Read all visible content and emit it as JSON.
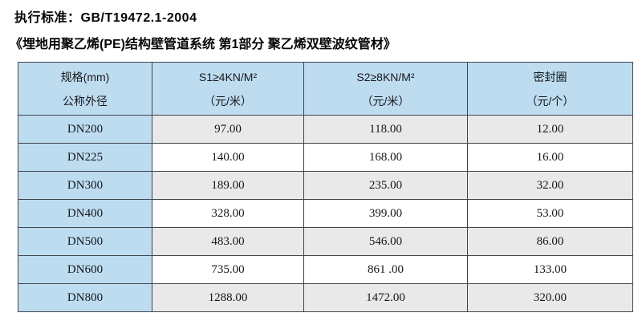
{
  "document": {
    "standard_line": "执行标准：GB/T19472.1-2004",
    "title_line": "《埋地用聚乙烯(PE)结构壁管道系统 第1部分 聚乙烯双壁波纹管材》"
  },
  "colors": {
    "header_bg": "#bedcf0",
    "first_column_bg": "#bedcf0",
    "alt_row_bg": "#e9e9e9",
    "border": "#3f464d"
  },
  "table": {
    "columns": [
      {
        "line1": "规格(mm)",
        "line2": "公称外径"
      },
      {
        "line1": "S1≥4KN/M²",
        "line2": "（元/米）"
      },
      {
        "line1": "S2≥8KN/M²",
        "line2": "（元/米）"
      },
      {
        "line1": "密封圈",
        "line2": "（元/个）"
      }
    ],
    "rows": [
      {
        "spec": "DN200",
        "s1_price": "97.00",
        "s2_price": "118.00",
        "seal_price": "12.00"
      },
      {
        "spec": "DN225",
        "s1_price": "140.00",
        "s2_price": "168.00",
        "seal_price": "16.00"
      },
      {
        "spec": "DN300",
        "s1_price": "189.00",
        "s2_price": "235.00",
        "seal_price": "32.00"
      },
      {
        "spec": "DN400",
        "s1_price": "328.00",
        "s2_price": "399.00",
        "seal_price": "53.00"
      },
      {
        "spec": "DN500",
        "s1_price": "483.00",
        "s2_price": "546.00",
        "seal_price": "86.00"
      },
      {
        "spec": "DN600",
        "s1_price": "735.00",
        "s2_price": "861 .00",
        "seal_price": "133.00"
      },
      {
        "spec": "DN800",
        "s1_price": "1288.00",
        "s2_price": "1472.00",
        "seal_price": "320.00"
      }
    ]
  }
}
